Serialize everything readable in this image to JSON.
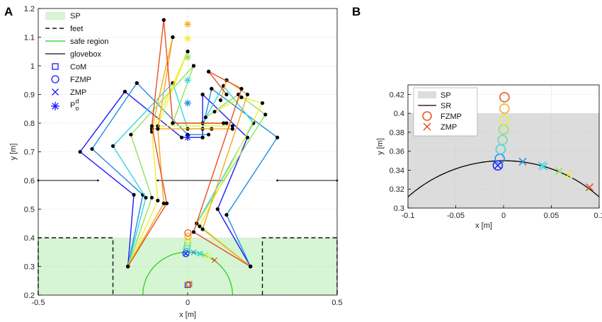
{
  "panels": {
    "a": "A",
    "b": "B"
  },
  "chart_data": [
    {
      "id": "A",
      "type": "line",
      "xlabel": "x [m]",
      "ylabel": "y [m]",
      "xlim": [
        -0.5,
        0.5
      ],
      "ylim": [
        0.2,
        1.2
      ],
      "xticks": [
        -0.5,
        0,
        0.5
      ],
      "xtick_labels": [
        "-0.5",
        "0",
        "0.5"
      ],
      "yticks": [
        0.2,
        0.3,
        0.4,
        0.5,
        0.6,
        0.7,
        0.8,
        0.9,
        1.0,
        1.1,
        1.2
      ],
      "ytick_labels": [
        "0.2",
        "0.3",
        "0.4",
        "0.5",
        "0.6",
        "0.7",
        "0.8",
        "0.9",
        "1",
        "1.1",
        "1.2"
      ],
      "grid": true,
      "legend_placement": "top-left",
      "legend": [
        {
          "label": "SP",
          "symbol": "patch"
        },
        {
          "label": "feet",
          "symbol": "dashed"
        },
        {
          "label": "safe region",
          "symbol": "green-line"
        },
        {
          "label": "glovebox",
          "symbol": "black-line"
        },
        {
          "label": "CoM",
          "symbol": "square"
        },
        {
          "label": "FZMP",
          "symbol": "circle"
        },
        {
          "label": "ZMP",
          "symbol": "x"
        },
        {
          "label": "P",
          "sub": "o",
          "sup": "d",
          "symbol": "star"
        }
      ],
      "support_polygon": [
        [
          -0.5,
          0.2
        ],
        [
          0.5,
          0.2
        ],
        [
          0.5,
          0.4
        ],
        [
          -0.5,
          0.4
        ]
      ],
      "feet": [
        [
          [
            -0.5,
            0.2
          ],
          [
            -0.5,
            0.4
          ],
          [
            -0.25,
            0.4
          ],
          [
            -0.25,
            0.2
          ]
        ],
        [
          [
            0.25,
            0.2
          ],
          [
            0.25,
            0.4
          ],
          [
            0.5,
            0.4
          ],
          [
            0.5,
            0.2
          ]
        ]
      ],
      "safe_region": {
        "center": [
          0,
          0.2
        ],
        "radius": 0.15
      },
      "glovebox": [
        [
          [
            -0.5,
            0.6
          ],
          [
            -0.3,
            0.6
          ]
        ],
        [
          [
            -0.1,
            0.6
          ],
          [
            0.12,
            0.6
          ]
        ],
        [
          [
            0.3,
            0.6
          ],
          [
            0.5,
            0.6
          ]
        ]
      ],
      "colors": [
        "#1a1aff",
        "#1f8de0",
        "#35d6e0",
        "#8fe35a",
        "#f2ef2a",
        "#f6a91c",
        "#e8501e"
      ],
      "com": [
        {
          "x": 0.0,
          "y": 0.235
        },
        {
          "x": 0.003,
          "y": 0.237
        },
        {
          "x": 0.005,
          "y": 0.238
        }
      ],
      "fzmp": [
        {
          "x": -0.006,
          "y": 0.345
        },
        {
          "x": -0.004,
          "y": 0.352
        },
        {
          "x": -0.003,
          "y": 0.362
        },
        {
          "x": -0.001,
          "y": 0.372
        },
        {
          "x": 0.0,
          "y": 0.383
        },
        {
          "x": 0.001,
          "y": 0.393
        },
        {
          "x": 0.001,
          "y": 0.405
        },
        {
          "x": 0.001,
          "y": 0.417
        }
      ],
      "zmp": [
        {
          "x": -0.006,
          "y": 0.345
        },
        {
          "x": 0.02,
          "y": 0.349
        },
        {
          "x": 0.04,
          "y": 0.345
        },
        {
          "x": 0.042,
          "y": 0.344
        },
        {
          "x": 0.058,
          "y": 0.339
        },
        {
          "x": 0.068,
          "y": 0.335
        },
        {
          "x": 0.09,
          "y": 0.322
        }
      ],
      "pod": [
        {
          "x": 0.0,
          "y": 0.75
        },
        {
          "x": 0.0,
          "y": 0.87
        },
        {
          "x": 0.0,
          "y": 0.95
        },
        {
          "x": 0.0,
          "y": 1.03
        },
        {
          "x": 0.0,
          "y": 1.095
        },
        {
          "x": 0.0,
          "y": 1.145
        }
      ],
      "poses": [
        {
          "left_leg": [
            [
              -0.2,
              0.3
            ],
            [
              -0.18,
              0.55
            ],
            [
              -0.36,
              0.7
            ],
            [
              -0.21,
              0.91
            ]
          ],
          "right_leg": [
            [
              0.21,
              0.3
            ],
            [
              0.1,
              0.5
            ],
            [
              0.2,
              0.75
            ],
            [
              0.05,
              0.9
            ]
          ],
          "arms": [
            [
              -0.21,
              0.91
            ],
            [
              -0.02,
              0.75
            ],
            [
              0.05,
              0.75
            ]
          ],
          "extra": [
            [
              0.05,
              0.9
            ],
            [
              0.05,
              0.75
            ]
          ]
        },
        {
          "left_leg": [
            [
              -0.2,
              0.3
            ],
            [
              -0.15,
              0.55
            ],
            [
              -0.32,
              0.71
            ],
            [
              -0.17,
              0.94
            ]
          ],
          "right_leg": [
            [
              0.21,
              0.3
            ],
            [
              0.13,
              0.48
            ],
            [
              0.3,
              0.75
            ],
            [
              0.08,
              0.92
            ]
          ],
          "arms": [
            [
              -0.17,
              0.94
            ],
            [
              0.0,
              0.76
            ],
            [
              0.07,
              0.76
            ]
          ],
          "extra": [
            [
              0.08,
              0.92
            ],
            [
              0.05,
              0.78
            ]
          ]
        },
        {
          "left_leg": [
            [
              -0.2,
              0.3
            ],
            [
              -0.14,
              0.54
            ],
            [
              -0.25,
              0.72
            ],
            [
              -0.05,
              0.94
            ]
          ],
          "right_leg": [
            [
              0.21,
              0.3
            ],
            [
              0.03,
              0.45
            ],
            [
              0.22,
              0.8
            ],
            [
              0.12,
              0.93
            ]
          ],
          "arms": [
            [
              -0.05,
              0.94
            ],
            [
              0.0,
              0.78
            ],
            [
              0.08,
              0.78
            ]
          ],
          "extra": [
            [
              0.12,
              0.93
            ],
            [
              0.05,
              0.8
            ]
          ]
        },
        {
          "left_leg": [
            [
              -0.2,
              0.3
            ],
            [
              -0.12,
              0.54
            ],
            [
              -0.19,
              0.76
            ],
            [
              0.02,
              1.0
            ]
          ],
          "right_leg": [
            [
              0.21,
              0.3
            ],
            [
              0.03,
              0.45
            ],
            [
              0.26,
              0.83
            ],
            [
              0.17,
              0.9
            ]
          ],
          "arms": [
            [
              0.02,
              1.0
            ],
            [
              -0.05,
              0.8
            ],
            [
              0.13,
              0.8
            ]
          ],
          "extra": [
            [
              0.17,
              0.9
            ],
            [
              0.06,
              0.82
            ]
          ]
        },
        {
          "left_leg": [
            [
              -0.2,
              0.3
            ],
            [
              -0.1,
              0.53
            ],
            [
              -0.12,
              0.77
            ],
            [
              0.0,
              1.05
            ]
          ],
          "right_leg": [
            [
              0.21,
              0.3
            ],
            [
              0.04,
              0.44
            ],
            [
              0.25,
              0.87
            ],
            [
              0.18,
              0.89
            ]
          ],
          "arms": [
            [
              0.0,
              1.05
            ],
            [
              -0.1,
              0.79
            ],
            [
              0.15,
              0.79
            ]
          ],
          "extra": [
            [
              0.18,
              0.89
            ],
            [
              0.09,
              0.84
            ]
          ]
        },
        {
          "left_leg": [
            [
              -0.2,
              0.3
            ],
            [
              -0.08,
              0.52
            ],
            [
              -0.1,
              0.78
            ],
            [
              -0.05,
              1.1
            ]
          ],
          "right_leg": [
            [
              0.21,
              0.3
            ],
            [
              0.05,
              0.43
            ],
            [
              0.2,
              0.9
            ],
            [
              0.13,
              0.95
            ]
          ],
          "arms": [
            [
              -0.05,
              1.1
            ],
            [
              -0.12,
              0.78
            ],
            [
              0.15,
              0.78
            ]
          ],
          "extra": [
            [
              0.13,
              0.95
            ],
            [
              0.11,
              0.88
            ]
          ]
        },
        {
          "left_leg": [
            [
              -0.2,
              0.3
            ],
            [
              -0.07,
              0.52
            ],
            [
              -0.12,
              0.79
            ],
            [
              -0.08,
              1.16
            ]
          ],
          "right_leg": [
            [
              0.21,
              0.3
            ],
            [
              0.02,
              0.42
            ],
            [
              0.18,
              0.92
            ],
            [
              0.07,
              0.98
            ]
          ],
          "arms": [
            [
              -0.08,
              1.16
            ],
            [
              -0.05,
              0.8
            ],
            [
              0.12,
              0.8
            ]
          ],
          "extra": [
            [
              0.07,
              0.98
            ],
            [
              0.13,
              0.9
            ]
          ]
        }
      ]
    },
    {
      "id": "B",
      "type": "line",
      "xlabel": "x [m]",
      "ylabel": "y [m]",
      "xlim": [
        -0.1,
        0.1
      ],
      "ylim": [
        0.3,
        0.43
      ],
      "xticks": [
        -0.1,
        -0.05,
        0,
        0.05,
        0.1
      ],
      "xtick_labels": [
        "-0.1",
        "-0.05",
        "0",
        "0.05",
        "0.1"
      ],
      "yticks": [
        0.3,
        0.32,
        0.34,
        0.36,
        0.38,
        0.4,
        0.42
      ],
      "ytick_labels": [
        "0.3",
        "0.32",
        "0.34",
        "0.36",
        "0.38",
        "0.4",
        "0.42"
      ],
      "grid": true,
      "legend_placement": "top-left",
      "legend": [
        {
          "label": "SP",
          "symbol": "patch"
        },
        {
          "label": "SR",
          "symbol": "black-line"
        },
        {
          "label": "FZMP",
          "symbol": "circle"
        },
        {
          "label": "ZMP",
          "symbol": "x"
        }
      ],
      "support_polygon": [
        [
          -0.1,
          0.3
        ],
        [
          0.1,
          0.3
        ],
        [
          0.1,
          0.4
        ],
        [
          -0.1,
          0.4
        ]
      ],
      "safe_region": {
        "center": [
          0,
          0.2
        ],
        "radius": 0.15
      }
    }
  ]
}
